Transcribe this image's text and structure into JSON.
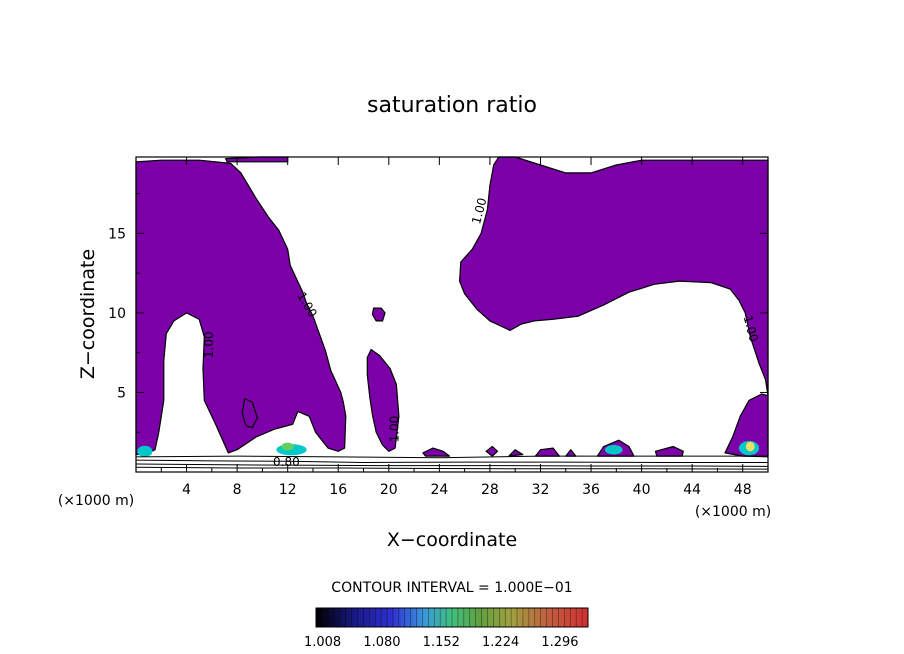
{
  "chart_data": {
    "type": "contour",
    "title": "saturation ratio",
    "xlabel": "X−coordinate",
    "ylabel": "Z−coordinate",
    "x_unit_left": "(×1000 m)",
    "x_unit_right": "(×1000 m)",
    "xlim": [
      0,
      50
    ],
    "ylim": [
      0,
      19.8
    ],
    "x_ticks": [
      "4",
      "8",
      "12",
      "16",
      "20",
      "24",
      "28",
      "32",
      "36",
      "40",
      "44",
      "48"
    ],
    "x_tick_values": [
      4,
      8,
      12,
      16,
      20,
      24,
      28,
      32,
      36,
      40,
      44,
      48
    ],
    "y_ticks": [
      "5",
      "10",
      "15"
    ],
    "y_tick_values": [
      5,
      10,
      15
    ],
    "contour_labels": [
      {
        "text": "1.00",
        "x": 5.8,
        "z": 8.0,
        "angle": -90
      },
      {
        "text": "1.00",
        "x": 13.5,
        "z": 10.5,
        "angle": 60
      },
      {
        "text": "1.00",
        "x": 20.5,
        "z": 2.7,
        "angle": -90
      },
      {
        "text": "1.00",
        "x": 27.2,
        "z": 16.4,
        "angle": -75
      },
      {
        "text": "1.00",
        "x": 48.6,
        "z": 9.0,
        "angle": 75
      },
      {
        "text": "0.80",
        "x": 11.9,
        "z": 0.6,
        "angle": 0
      }
    ],
    "contour_interval_text": "CONTOUR INTERVAL = 1.000E−01",
    "colorbar": {
      "tick_labels": [
        "1.008",
        "1.080",
        "1.152",
        "1.224",
        "1.296"
      ],
      "tick_values": [
        1.008,
        1.08,
        1.152,
        1.224,
        1.296
      ],
      "range": [
        1.0,
        1.33
      ]
    },
    "colors": {
      "region_fill": "#7b00a8",
      "low_cyan": "#00c8c8",
      "mid_green": "#60d060",
      "high_yellow": "#f0e060"
    },
    "regions": [
      {
        "name": "left-supersaturated-region",
        "points": [
          [
            0,
            19.5
          ],
          [
            2,
            19.6
          ],
          [
            5,
            19.6
          ],
          [
            7.5,
            19.4
          ],
          [
            8.3,
            18.8
          ],
          [
            9.5,
            17.2
          ],
          [
            10.5,
            16
          ],
          [
            11.3,
            15.2
          ],
          [
            12,
            14
          ],
          [
            12.2,
            13
          ],
          [
            12.6,
            12.3
          ],
          [
            13.2,
            11.3
          ],
          [
            13.5,
            10.6
          ],
          [
            14,
            9.8
          ],
          [
            14.5,
            8.7
          ],
          [
            15,
            7.6
          ],
          [
            15.4,
            6.4
          ],
          [
            16.2,
            5
          ],
          [
            16.4,
            4.4
          ],
          [
            16.6,
            3.5
          ],
          [
            16.5,
            1.5
          ],
          [
            16,
            1.3
          ],
          [
            15.2,
            1.5
          ],
          [
            14.2,
            2.5
          ],
          [
            13.7,
            3.5
          ],
          [
            12.8,
            3.8
          ],
          [
            12.4,
            3
          ],
          [
            11,
            2.7
          ],
          [
            9.5,
            2.2
          ],
          [
            8,
            1.4
          ],
          [
            7.3,
            1.2
          ],
          [
            6.3,
            3
          ],
          [
            5.4,
            4.5
          ],
          [
            5.3,
            6.5
          ],
          [
            5.4,
            8.5
          ],
          [
            5,
            9.6
          ],
          [
            4,
            10
          ],
          [
            3,
            9.5
          ],
          [
            2.4,
            8.7
          ],
          [
            2.2,
            7
          ],
          [
            2.2,
            4.5
          ],
          [
            1.8,
            2.5
          ],
          [
            1.5,
            1.4
          ],
          [
            1,
            1.2
          ],
          [
            0,
            1.1
          ]
        ]
      },
      {
        "name": "center-top-supersaturated-region",
        "points": [
          [
            28.7,
            19.8
          ],
          [
            30,
            19.8
          ],
          [
            32,
            19.3
          ],
          [
            34,
            18.8
          ],
          [
            36,
            18.8
          ],
          [
            38,
            19.3
          ],
          [
            40,
            19.6
          ],
          [
            50,
            19.6
          ],
          [
            50,
            4.8
          ],
          [
            49.8,
            5.8
          ],
          [
            49.3,
            6.8
          ],
          [
            48.6,
            8.5
          ],
          [
            48.2,
            10
          ],
          [
            47.7,
            10.8
          ],
          [
            47,
            11.5
          ],
          [
            45.5,
            11.9
          ],
          [
            43,
            12
          ],
          [
            41,
            11.8
          ],
          [
            39,
            11.3
          ],
          [
            37,
            10.5
          ],
          [
            35,
            9.8
          ],
          [
            33,
            9.6
          ],
          [
            31.5,
            9.5
          ],
          [
            30.5,
            9.3
          ],
          [
            29.6,
            8.9
          ],
          [
            28,
            9.5
          ],
          [
            27,
            10.2
          ],
          [
            26,
            11.2
          ],
          [
            25.6,
            12
          ],
          [
            25.7,
            13.2
          ],
          [
            26.6,
            14
          ],
          [
            27.3,
            15
          ],
          [
            27.8,
            16.5
          ],
          [
            28,
            18
          ],
          [
            28.3,
            19.3
          ]
        ]
      },
      {
        "name": "right-lower-supersaturated-region",
        "points": [
          [
            46.6,
            1.2
          ],
          [
            47.2,
            2.2
          ],
          [
            47.8,
            3.5
          ],
          [
            48.5,
            4.5
          ],
          [
            49.5,
            4.9
          ],
          [
            50,
            4.8
          ],
          [
            50,
            1.0
          ],
          [
            48,
            1.0
          ]
        ]
      },
      {
        "name": "center-column-supersaturated-region",
        "points": [
          [
            18.6,
            7.7
          ],
          [
            19.3,
            7.3
          ],
          [
            20.1,
            6.5
          ],
          [
            20.6,
            5.5
          ],
          [
            20.8,
            3.5
          ],
          [
            20.5,
            1.5
          ],
          [
            20,
            1.3
          ],
          [
            19.5,
            1.7
          ],
          [
            19,
            2.5
          ],
          [
            18.7,
            3.6
          ],
          [
            18.5,
            4.7
          ],
          [
            18.3,
            6.1
          ],
          [
            18.3,
            7.2
          ]
        ]
      },
      {
        "name": "small-cell-z10",
        "points": [
          [
            18.8,
            10.3
          ],
          [
            19.4,
            10.3
          ],
          [
            19.7,
            10
          ],
          [
            19.5,
            9.5
          ],
          [
            19,
            9.5
          ],
          [
            18.7,
            9.9
          ]
        ]
      },
      {
        "name": "small-cell-x8",
        "points": [
          [
            8.6,
            4.6
          ],
          [
            9.2,
            4.4
          ],
          [
            9.6,
            3.4
          ],
          [
            9.2,
            2.8
          ],
          [
            8.7,
            2.9
          ],
          [
            8.4,
            3.7
          ]
        ]
      },
      {
        "name": "top-strip-cell",
        "points": [
          [
            7.1,
            19.7
          ],
          [
            9.8,
            19.8
          ],
          [
            12,
            19.8
          ],
          [
            12,
            19.5
          ],
          [
            9,
            19.5
          ],
          [
            7.2,
            19.5
          ]
        ]
      },
      {
        "name": "surface-cell-x24",
        "points": [
          [
            22.7,
            1.2
          ],
          [
            23.5,
            1.5
          ],
          [
            24.3,
            1.3
          ],
          [
            24.8,
            1.0
          ],
          [
            22.9,
            1.0
          ]
        ]
      },
      {
        "name": "surface-cell-x28",
        "points": [
          [
            27.7,
            1.3
          ],
          [
            28.2,
            1.6
          ],
          [
            28.6,
            1.3
          ],
          [
            28.2,
            1.0
          ]
        ]
      },
      {
        "name": "surface-cell-x30",
        "points": [
          [
            29.5,
            1.0
          ],
          [
            30,
            1.4
          ],
          [
            30.6,
            1.1
          ]
        ]
      },
      {
        "name": "surface-cell-x32",
        "points": [
          [
            31.6,
            1.0
          ],
          [
            32,
            1.4
          ],
          [
            33,
            1.5
          ],
          [
            33.5,
            1.0
          ]
        ]
      },
      {
        "name": "surface-cell-x34",
        "points": [
          [
            34,
            1.0
          ],
          [
            34.4,
            1.4
          ],
          [
            34.8,
            1.0
          ]
        ]
      },
      {
        "name": "surface-cell-x38",
        "points": [
          [
            36.5,
            1.0
          ],
          [
            37,
            1.6
          ],
          [
            38.2,
            2.0
          ],
          [
            39,
            1.6
          ],
          [
            39.4,
            1.0
          ]
        ]
      },
      {
        "name": "surface-cell-x42",
        "points": [
          [
            41.1,
            1.3
          ],
          [
            42.5,
            1.6
          ],
          [
            43.3,
            1.3
          ],
          [
            43.2,
            1.0
          ],
          [
            41.2,
            1.0
          ]
        ]
      }
    ],
    "lower_contours": [
      {
        "name": "surface-contour-1",
        "points": [
          [
            0,
            0.95
          ],
          [
            8,
            1.0
          ],
          [
            16,
            0.95
          ],
          [
            24,
            0.9
          ],
          [
            32,
            1.0
          ],
          [
            40,
            1.0
          ],
          [
            48,
            1.0
          ],
          [
            50,
            0.95
          ]
        ]
      },
      {
        "name": "surface-contour-2",
        "points": [
          [
            0,
            0.75
          ],
          [
            6,
            0.7
          ],
          [
            12,
            0.68
          ],
          [
            18,
            0.6
          ],
          [
            26,
            0.62
          ],
          [
            34,
            0.62
          ],
          [
            42,
            0.6
          ],
          [
            50,
            0.6
          ]
        ]
      },
      {
        "name": "surface-contour-3",
        "points": [
          [
            0,
            0.5
          ],
          [
            7,
            0.45
          ],
          [
            14,
            0.42
          ],
          [
            20,
            0.4
          ],
          [
            28,
            0.4
          ],
          [
            36,
            0.38
          ],
          [
            44,
            0.38
          ],
          [
            50,
            0.35
          ]
        ]
      },
      {
        "name": "surface-contour-4",
        "points": [
          [
            0,
            0.3
          ],
          [
            8,
            0.25
          ],
          [
            16,
            0.25
          ],
          [
            24,
            0.22
          ],
          [
            32,
            0.2
          ],
          [
            40,
            0.2
          ],
          [
            50,
            0.18
          ]
        ]
      }
    ],
    "highlights": [
      {
        "name": "left-surface-high",
        "x": 0.7,
        "z": 1.3,
        "rx": 0.6,
        "rz": 0.35,
        "level": "cyan"
      },
      {
        "name": "center-left-surface-high",
        "x": 12.3,
        "z": 1.4,
        "rx": 1.2,
        "rz": 0.35,
        "level": "cyan"
      },
      {
        "name": "center-left-surface-core",
        "x": 12.0,
        "z": 1.6,
        "rx": 0.5,
        "rz": 0.25,
        "level": "green"
      },
      {
        "name": "right-surface-high",
        "x": 48.5,
        "z": 1.5,
        "rx": 0.8,
        "rz": 0.45,
        "level": "cyan"
      },
      {
        "name": "right-surface-core",
        "x": 48.6,
        "z": 1.6,
        "rx": 0.35,
        "rz": 0.3,
        "level": "yellow"
      },
      {
        "name": "x38-surface-high",
        "x": 37.8,
        "z": 1.4,
        "rx": 0.7,
        "rz": 0.3,
        "level": "cyan"
      }
    ]
  }
}
